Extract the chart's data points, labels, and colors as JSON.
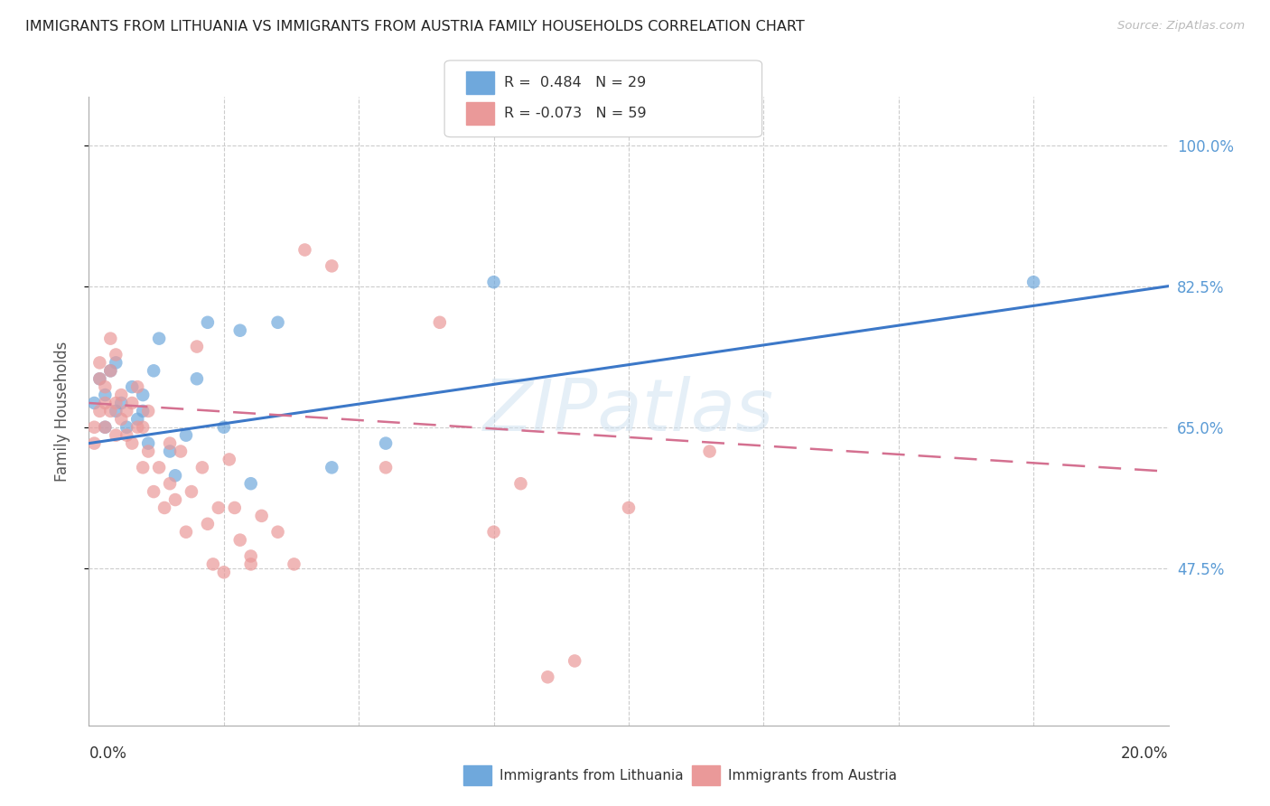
{
  "title": "IMMIGRANTS FROM LITHUANIA VS IMMIGRANTS FROM AUSTRIA FAMILY HOUSEHOLDS CORRELATION CHART",
  "source": "Source: ZipAtlas.com",
  "ylabel": "Family Households",
  "ytick_vals": [
    0.475,
    0.65,
    0.825,
    1.0
  ],
  "ytick_labels": [
    "47.5%",
    "65.0%",
    "82.5%",
    "100.0%"
  ],
  "xlim": [
    0.0,
    0.2
  ],
  "ylim": [
    0.28,
    1.06
  ],
  "legend_r1": "R =  0.484   N = 29",
  "legend_r2": "R = -0.073   N = 59",
  "lithuania_color": "#6fa8dc",
  "austria_color": "#ea9999",
  "trendline_blue": "#3c78c8",
  "trendline_pink": "#d47090",
  "background_color": "#ffffff",
  "watermark": "ZIPatlas",
  "lithuania_scatter_x": [
    0.001,
    0.002,
    0.003,
    0.003,
    0.004,
    0.005,
    0.005,
    0.006,
    0.007,
    0.008,
    0.009,
    0.01,
    0.01,
    0.011,
    0.012,
    0.013,
    0.015,
    0.016,
    0.018,
    0.02,
    0.022,
    0.025,
    0.028,
    0.03,
    0.035,
    0.045,
    0.055,
    0.075,
    0.175
  ],
  "lithuania_scatter_y": [
    0.68,
    0.71,
    0.65,
    0.69,
    0.72,
    0.67,
    0.73,
    0.68,
    0.65,
    0.7,
    0.66,
    0.67,
    0.69,
    0.63,
    0.72,
    0.76,
    0.62,
    0.59,
    0.64,
    0.71,
    0.78,
    0.65,
    0.77,
    0.58,
    0.78,
    0.6,
    0.63,
    0.83,
    0.83
  ],
  "austria_scatter_x": [
    0.001,
    0.001,
    0.002,
    0.002,
    0.002,
    0.003,
    0.003,
    0.003,
    0.004,
    0.004,
    0.004,
    0.005,
    0.005,
    0.005,
    0.006,
    0.006,
    0.007,
    0.007,
    0.008,
    0.008,
    0.009,
    0.009,
    0.01,
    0.01,
    0.011,
    0.011,
    0.012,
    0.013,
    0.014,
    0.015,
    0.015,
    0.016,
    0.017,
    0.018,
    0.019,
    0.02,
    0.021,
    0.022,
    0.023,
    0.024,
    0.025,
    0.026,
    0.027,
    0.028,
    0.03,
    0.032,
    0.035,
    0.038,
    0.04,
    0.045,
    0.055,
    0.065,
    0.075,
    0.08,
    0.085,
    0.09,
    0.1,
    0.115,
    0.03
  ],
  "austria_scatter_y": [
    0.63,
    0.65,
    0.67,
    0.71,
    0.73,
    0.65,
    0.68,
    0.7,
    0.67,
    0.72,
    0.76,
    0.64,
    0.68,
    0.74,
    0.66,
    0.69,
    0.64,
    0.67,
    0.63,
    0.68,
    0.65,
    0.7,
    0.6,
    0.65,
    0.62,
    0.67,
    0.57,
    0.6,
    0.55,
    0.58,
    0.63,
    0.56,
    0.62,
    0.52,
    0.57,
    0.75,
    0.6,
    0.53,
    0.48,
    0.55,
    0.47,
    0.61,
    0.55,
    0.51,
    0.48,
    0.54,
    0.52,
    0.48,
    0.87,
    0.85,
    0.6,
    0.78,
    0.52,
    0.58,
    0.34,
    0.36,
    0.55,
    0.62,
    0.49
  ],
  "blue_trendline_x": [
    0.0,
    0.2
  ],
  "blue_trendline_y": [
    0.63,
    0.825
  ],
  "pink_trendline_x": [
    0.0,
    0.2
  ],
  "pink_trendline_y": [
    0.68,
    0.595
  ],
  "xtick_positions": [
    0.0,
    0.025,
    0.05,
    0.075,
    0.1,
    0.125,
    0.15,
    0.175,
    0.2
  ],
  "grid_x": [
    0.025,
    0.05,
    0.075,
    0.1,
    0.125,
    0.15,
    0.175
  ]
}
